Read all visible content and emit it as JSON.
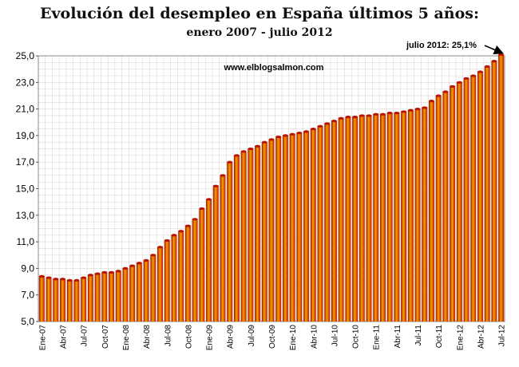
{
  "chart_data": {
    "type": "bar",
    "title": "Evolución del desempleo en España últimos 5 años:",
    "subtitle": "enero 2007 - julio 2012",
    "watermark": "www.elblogsalmon.com",
    "annotation": "julio 2012: 25,1%",
    "xlabel": "",
    "ylabel": "",
    "ylim": [
      5,
      25
    ],
    "yticks": [
      "5,0",
      "7,0",
      "9,0",
      "11,0",
      "13,0",
      "15,0",
      "17,0",
      "19,0",
      "21,0",
      "23,0",
      "25,0"
    ],
    "xtick_labels": [
      "Ene-07",
      "Abr-07",
      "Jul-07",
      "Oct-07",
      "Ene-08",
      "Abr-08",
      "Jul-08",
      "Oct-08",
      "Ene-09",
      "Abr-09",
      "Jul-09",
      "Oct-09",
      "Ene-10",
      "Abr-10",
      "Jul-10",
      "Oct-10",
      "Ene-11",
      "Abr-11",
      "Jul-11",
      "Oct-11",
      "Ene-12",
      "Abr-12",
      "Jul-12"
    ],
    "categories": [
      "Ene-07",
      "Feb-07",
      "Mar-07",
      "Abr-07",
      "May-07",
      "Jun-07",
      "Jul-07",
      "Ago-07",
      "Sep-07",
      "Oct-07",
      "Nov-07",
      "Dic-07",
      "Ene-08",
      "Feb-08",
      "Mar-08",
      "Abr-08",
      "May-08",
      "Jun-08",
      "Jul-08",
      "Ago-08",
      "Sep-08",
      "Oct-08",
      "Nov-08",
      "Dic-08",
      "Ene-09",
      "Feb-09",
      "Mar-09",
      "Abr-09",
      "May-09",
      "Jun-09",
      "Jul-09",
      "Ago-09",
      "Sep-09",
      "Oct-09",
      "Nov-09",
      "Dic-09",
      "Ene-10",
      "Feb-10",
      "Mar-10",
      "Abr-10",
      "May-10",
      "Jun-10",
      "Jul-10",
      "Ago-10",
      "Sep-10",
      "Oct-10",
      "Nov-10",
      "Dic-10",
      "Ene-11",
      "Feb-11",
      "Mar-11",
      "Abr-11",
      "May-11",
      "Jun-11",
      "Jul-11",
      "Ago-11",
      "Sep-11",
      "Oct-11",
      "Nov-11",
      "Dic-11",
      "Ene-12",
      "Feb-12",
      "Mar-12",
      "Abr-12",
      "May-12",
      "Jun-12",
      "Jul-12"
    ],
    "values": [
      8.4,
      8.3,
      8.2,
      8.2,
      8.1,
      8.1,
      8.3,
      8.5,
      8.6,
      8.7,
      8.7,
      8.8,
      9.0,
      9.2,
      9.4,
      9.6,
      10.0,
      10.6,
      11.1,
      11.5,
      11.8,
      12.2,
      12.7,
      13.5,
      14.2,
      15.2,
      16.0,
      17.0,
      17.5,
      17.8,
      18.0,
      18.2,
      18.5,
      18.7,
      18.9,
      19.0,
      19.1,
      19.2,
      19.3,
      19.5,
      19.7,
      19.9,
      20.1,
      20.3,
      20.4,
      20.4,
      20.5,
      20.5,
      20.6,
      20.6,
      20.7,
      20.7,
      20.8,
      20.9,
      21.0,
      21.1,
      21.6,
      22.0,
      22.3,
      22.7,
      23.0,
      23.3,
      23.5,
      23.8,
      24.2,
      24.6,
      25.1
    ],
    "grid": true,
    "bar_color": "#d81e05",
    "bar_highlight_color": "#f5a000"
  }
}
